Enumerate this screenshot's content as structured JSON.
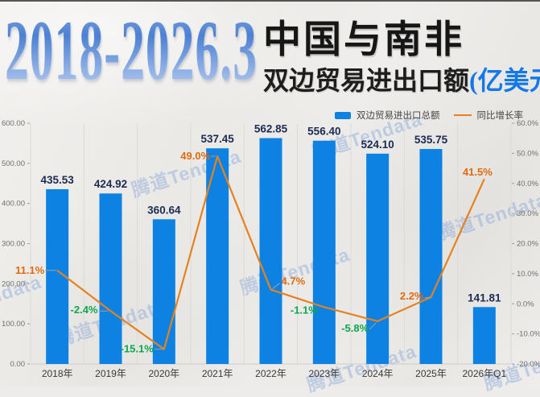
{
  "page": {
    "background": "#edecea",
    "top_border_color": "#3a3a3a"
  },
  "title": {
    "years": "2018-2026.3",
    "line1": "中国与南非",
    "line2": "双边贸易进出口额",
    "unit": "(亿美元)"
  },
  "watermark": {
    "text": "腾道Tendata",
    "color": "rgba(122,158,214,0.40)"
  },
  "colors": {
    "bar": "#0d82e2",
    "line": "#e5821f",
    "bar_label": "#1c2b52",
    "pct_positive": "#e26a0e",
    "pct_negative": "#0ca74e",
    "axis_label": "#707070",
    "category_label": "#3a3a3a",
    "gridline": "#dcdad6",
    "leader": "#9aa0a8"
  },
  "chart_data": {
    "type": "bar",
    "subtype": "bar+line combo, dual axis",
    "categories": [
      "2018年",
      "2019年",
      "2020年",
      "2021年",
      "2022年",
      "2023年",
      "2024年",
      "2025年",
      "2026年Q1"
    ],
    "series": [
      {
        "name": "双边贸易进出口总额",
        "type": "bar",
        "axis": "left",
        "values": [
          435.53,
          424.92,
          360.64,
          537.45,
          562.85,
          556.4,
          524.1,
          535.75,
          141.81
        ],
        "value_labels": [
          "435.53",
          "424.92",
          "360.64",
          "537.45",
          "562.85",
          "556.40",
          "524.10",
          "535.75",
          "141.81"
        ]
      },
      {
        "name": "同比增长率",
        "type": "line",
        "axis": "right",
        "values": [
          11.1,
          -2.4,
          -15.1,
          49.0,
          4.7,
          -1.1,
          -5.8,
          2.2,
          41.5
        ],
        "value_labels": [
          "11.1%",
          "-2.4%",
          "-15.1%",
          "49.0%",
          "4.7%",
          "-1.1%",
          "-5.8%",
          "2.2%",
          "41.5%"
        ]
      }
    ],
    "left_axis": {
      "min": 0,
      "max": 600,
      "tick_values": [
        600,
        500,
        400,
        300,
        200,
        100,
        0
      ],
      "ticks": [
        "600.00",
        "500.00",
        "400.00",
        "300.00",
        "200.00",
        "100.00",
        "0.00"
      ]
    },
    "right_axis": {
      "min": -20,
      "max": 60,
      "tick_values": [
        60,
        50,
        40,
        30,
        20,
        10,
        0,
        -10,
        -20
      ],
      "ticks": [
        "60.0%",
        "50.0%",
        "40.0%",
        "30.0%",
        "20.0%",
        "10.0%",
        "0.0%",
        "-10.0%",
        "-20.0%"
      ]
    },
    "grid": "vertical-only",
    "legend_position": "top-right"
  }
}
